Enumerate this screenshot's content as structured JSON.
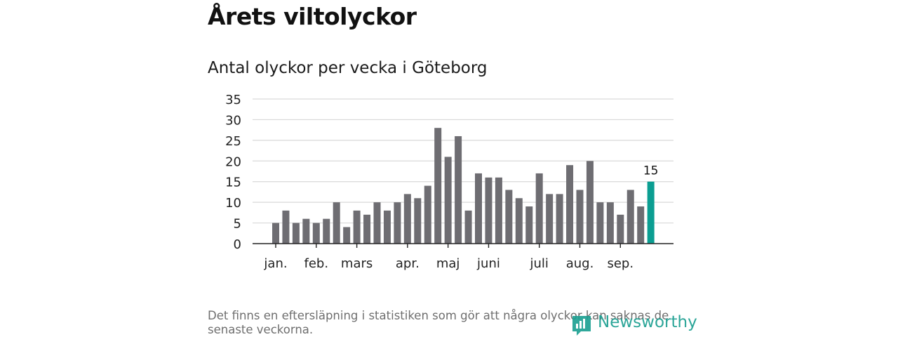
{
  "header": {
    "title": "Årets viltolyckor",
    "subtitle": "Antal olyckor per vecka i Göteborg"
  },
  "footnote": "Det finns en eftersläpning i statistiken som gör att några olyckor kan saknas de senaste veckorna.",
  "logo": {
    "text": "Newsworthy",
    "color": "#1a9e90"
  },
  "colors": {
    "bar": "#6e6d72",
    "highlight": "#0b9e92",
    "grid": "#d9d9d9",
    "axis": "#222222"
  },
  "chart_data": {
    "type": "bar",
    "title": "Antal olyckor per vecka i Göteborg",
    "xlabel": "",
    "ylabel": "",
    "ylim": [
      0,
      35
    ],
    "yticks": [
      0,
      5,
      10,
      15,
      20,
      25,
      30,
      35
    ],
    "grid": true,
    "week_values": [
      5,
      8,
      5,
      6,
      5,
      6,
      10,
      4,
      8,
      7,
      10,
      8,
      10,
      12,
      11,
      14,
      28,
      21,
      26,
      8,
      17,
      16,
      16,
      13,
      11,
      9,
      17,
      12,
      12,
      19,
      13,
      20,
      10,
      10,
      7,
      13,
      9,
      15
    ],
    "highlight_index": 37,
    "highlight_label": "15",
    "month_labels": [
      {
        "label": "jan.",
        "week_index": 0
      },
      {
        "label": "feb.",
        "week_index": 4
      },
      {
        "label": "mars",
        "week_index": 8
      },
      {
        "label": "apr.",
        "week_index": 13
      },
      {
        "label": "maj",
        "week_index": 17
      },
      {
        "label": "juni",
        "week_index": 21
      },
      {
        "label": "juli",
        "week_index": 26
      },
      {
        "label": "aug.",
        "week_index": 30
      },
      {
        "label": "sep.",
        "week_index": 34
      }
    ]
  }
}
